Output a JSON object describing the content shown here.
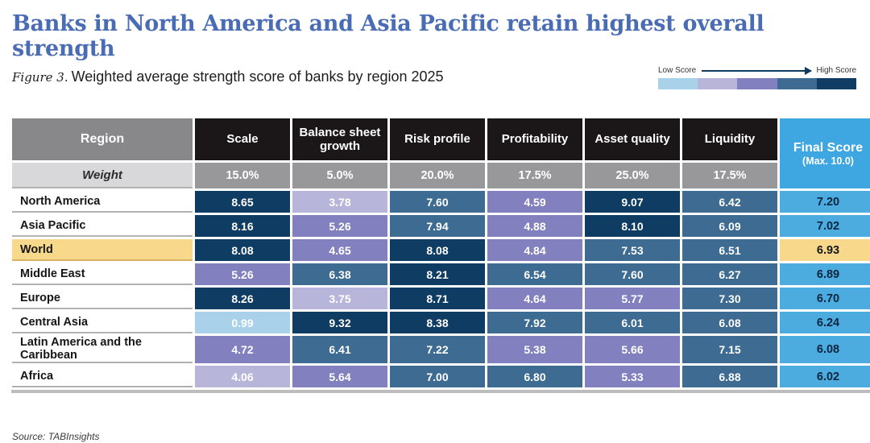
{
  "page": {
    "title": "Banks in North America and Asia Pacific retain highest overall strength",
    "figure_label": "Figure 3.",
    "figure_caption": "Weighted average strength score of banks by region 2025",
    "source": "Source: TABInsights"
  },
  "legend": {
    "low_label": "Low Score",
    "high_label": "High Score",
    "swatches": [
      "#a9d1ea",
      "#b7b6da",
      "#8280bf",
      "#3d6b92",
      "#0f3c62"
    ]
  },
  "colors": {
    "title_blue": "#4a6cb4",
    "header_black": "#1b1718",
    "region_header_gray": "#88888b",
    "weight_label_gray": "#d8d8da",
    "weight_value_gray": "#98989b",
    "final_header_blue": "#3ea6e0",
    "final_cell_blue": "#4cabdf",
    "highlight_yellow": "#f8d98b",
    "heat_scale": [
      "#a9d1ea",
      "#b7b6da",
      "#8280bf",
      "#3d6b92",
      "#0f3c62"
    ]
  },
  "table": {
    "region_header": "Region",
    "weight_label": "Weight",
    "columns": [
      "Scale",
      "Balance sheet growth",
      "Risk profile",
      "Profitability",
      "Asset quality",
      "Liquidity"
    ],
    "final_score_header": "Final Score",
    "final_score_subheader": "(Max. 10.0)",
    "weights": [
      "15.0%",
      "5.0%",
      "20.0%",
      "17.5%",
      "25.0%",
      "17.5%"
    ],
    "rows": [
      {
        "region": "North America",
        "values": [
          "8.65",
          "3.78",
          "7.60",
          "4.59",
          "9.07",
          "6.42"
        ],
        "levels": [
          5,
          2,
          4,
          3,
          5,
          4
        ],
        "final": "7.20",
        "highlight": false
      },
      {
        "region": "Asia Pacific",
        "values": [
          "8.16",
          "5.26",
          "7.94",
          "4.88",
          "8.10",
          "6.09"
        ],
        "levels": [
          5,
          3,
          4,
          3,
          5,
          4
        ],
        "final": "7.02",
        "highlight": false
      },
      {
        "region": "World",
        "values": [
          "8.08",
          "4.65",
          "8.08",
          "4.84",
          "7.53",
          "6.51"
        ],
        "levels": [
          5,
          3,
          5,
          3,
          4,
          4
        ],
        "final": "6.93",
        "highlight": true
      },
      {
        "region": "Middle East",
        "values": [
          "5.26",
          "6.38",
          "8.21",
          "6.54",
          "7.60",
          "6.27"
        ],
        "levels": [
          3,
          4,
          5,
          4,
          4,
          4
        ],
        "final": "6.89",
        "highlight": false
      },
      {
        "region": "Europe",
        "values": [
          "8.26",
          "3.75",
          "8.71",
          "4.64",
          "5.77",
          "7.30"
        ],
        "levels": [
          5,
          2,
          5,
          3,
          3,
          4
        ],
        "final": "6.70",
        "highlight": false
      },
      {
        "region": "Central Asia",
        "values": [
          "0.99",
          "9.32",
          "8.38",
          "7.92",
          "6.01",
          "6.08"
        ],
        "levels": [
          1,
          5,
          5,
          4,
          4,
          4
        ],
        "final": "6.24",
        "highlight": false
      },
      {
        "region": "Latin America and the Caribbean",
        "values": [
          "4.72",
          "6.41",
          "7.22",
          "5.38",
          "5.66",
          "7.15"
        ],
        "levels": [
          3,
          4,
          4,
          3,
          3,
          4
        ],
        "final": "6.08",
        "highlight": false
      },
      {
        "region": "Africa",
        "values": [
          "4.06",
          "5.64",
          "7.00",
          "6.80",
          "5.33",
          "6.88"
        ],
        "levels": [
          2,
          3,
          4,
          4,
          3,
          4
        ],
        "final": "6.02",
        "highlight": false
      }
    ]
  },
  "chart_data": {
    "type": "heatmap",
    "title": "Weighted average strength score of banks by region 2025",
    "figure": "Figure 3",
    "columns": [
      "Scale",
      "Balance sheet growth",
      "Risk profile",
      "Profitability",
      "Asset quality",
      "Liquidity",
      "Final Score (Max. 10.0)"
    ],
    "weights_percent": [
      15.0,
      5.0,
      20.0,
      17.5,
      25.0,
      17.5
    ],
    "value_range": [
      0,
      10
    ],
    "legend": "Low Score to High Score (light blue to dark navy)",
    "highlighted_row": "World",
    "rows": [
      {
        "region": "North America",
        "scale": 8.65,
        "balance_sheet_growth": 3.78,
        "risk_profile": 7.6,
        "profitability": 4.59,
        "asset_quality": 9.07,
        "liquidity": 6.42,
        "final_score": 7.2
      },
      {
        "region": "Asia Pacific",
        "scale": 8.16,
        "balance_sheet_growth": 5.26,
        "risk_profile": 7.94,
        "profitability": 4.88,
        "asset_quality": 8.1,
        "liquidity": 6.09,
        "final_score": 7.02
      },
      {
        "region": "World",
        "scale": 8.08,
        "balance_sheet_growth": 4.65,
        "risk_profile": 8.08,
        "profitability": 4.84,
        "asset_quality": 7.53,
        "liquidity": 6.51,
        "final_score": 6.93
      },
      {
        "region": "Middle East",
        "scale": 5.26,
        "balance_sheet_growth": 6.38,
        "risk_profile": 8.21,
        "profitability": 6.54,
        "asset_quality": 7.6,
        "liquidity": 6.27,
        "final_score": 6.89
      },
      {
        "region": "Europe",
        "scale": 8.26,
        "balance_sheet_growth": 3.75,
        "risk_profile": 8.71,
        "profitability": 4.64,
        "asset_quality": 5.77,
        "liquidity": 7.3,
        "final_score": 6.7
      },
      {
        "region": "Central Asia",
        "scale": 0.99,
        "balance_sheet_growth": 9.32,
        "risk_profile": 8.38,
        "profitability": 7.92,
        "asset_quality": 6.01,
        "liquidity": 6.08,
        "final_score": 6.24
      },
      {
        "region": "Latin America and the Caribbean",
        "scale": 4.72,
        "balance_sheet_growth": 6.41,
        "risk_profile": 7.22,
        "profitability": 5.38,
        "asset_quality": 5.66,
        "liquidity": 7.15,
        "final_score": 6.08
      },
      {
        "region": "Africa",
        "scale": 4.06,
        "balance_sheet_growth": 5.64,
        "risk_profile": 7.0,
        "profitability": 6.8,
        "asset_quality": 5.33,
        "liquidity": 6.88,
        "final_score": 6.02
      }
    ]
  }
}
